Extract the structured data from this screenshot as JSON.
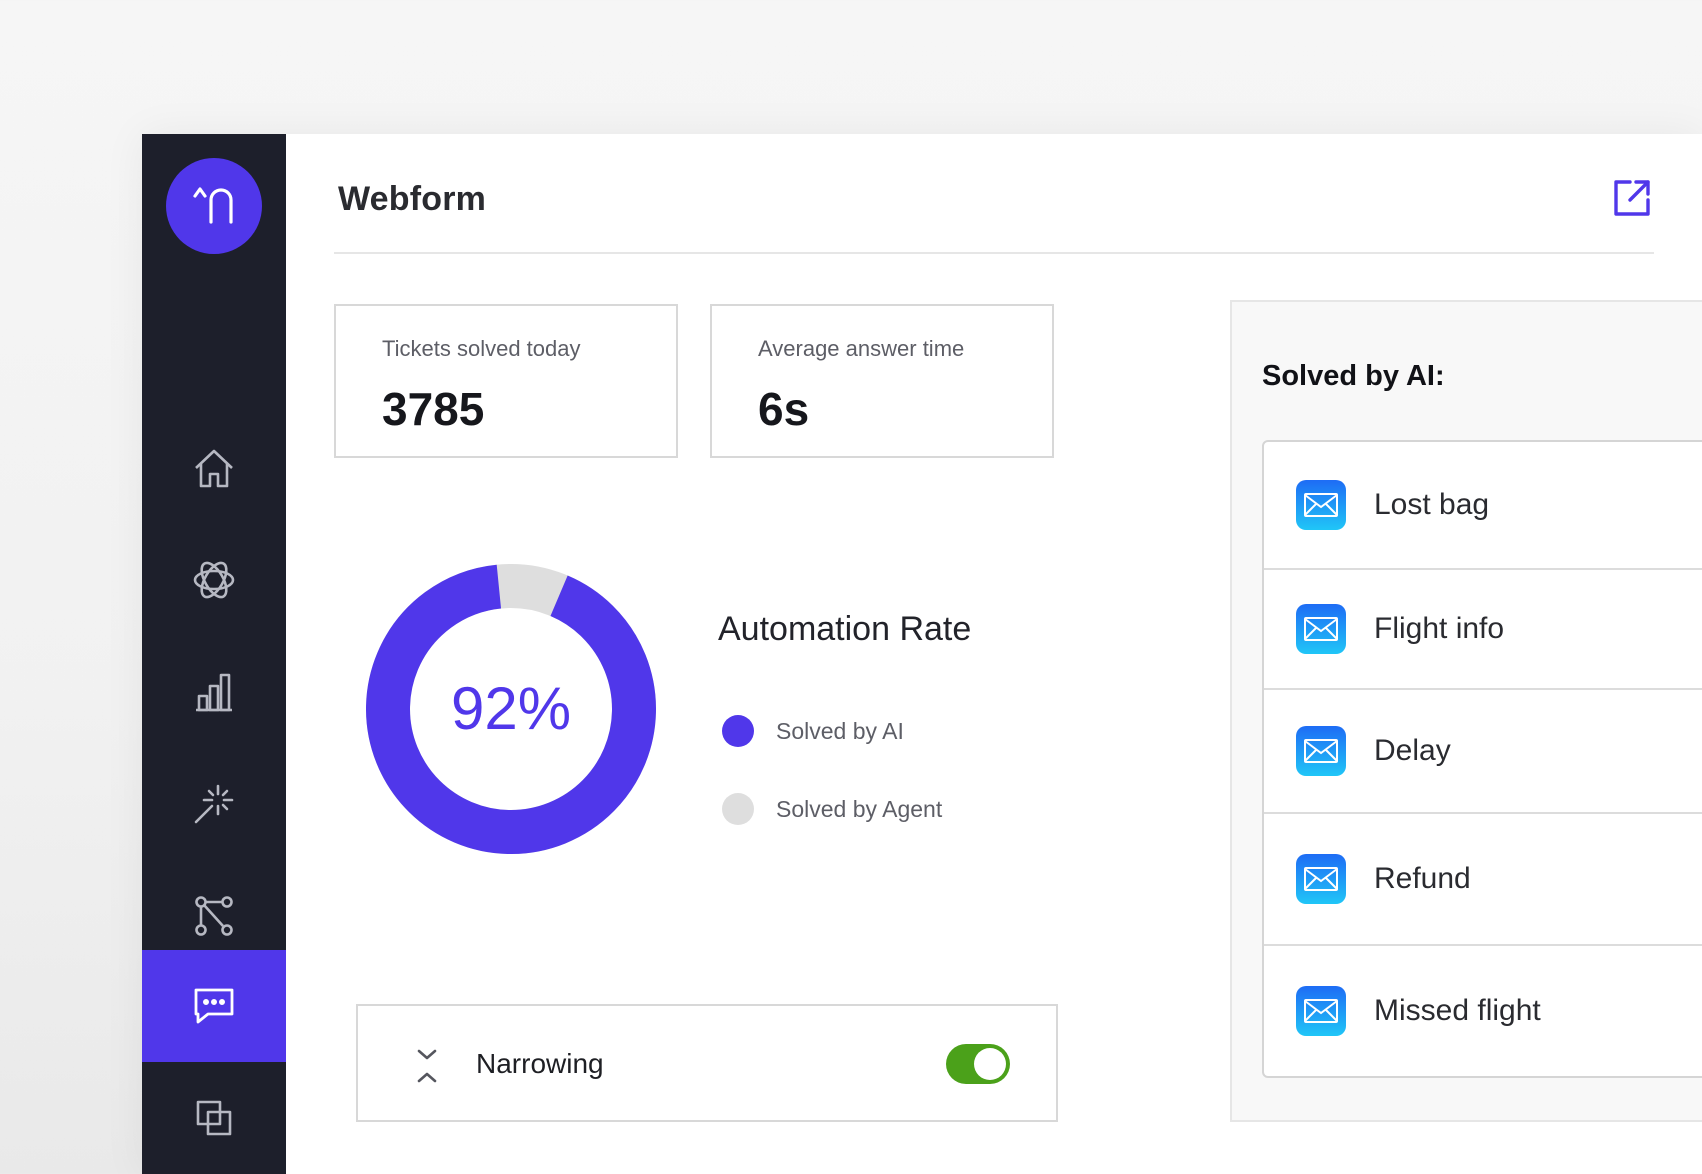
{
  "app": {
    "logo_icon": "underline-logo-icon"
  },
  "colors": {
    "brand": "#5037ea",
    "sidebar": "#1d1f2b",
    "agent": "#dedede",
    "toggle_on": "#4ba11a",
    "mail_gradient": [
      "#1e6cf5",
      "#20c6f7"
    ]
  },
  "sidebar": {
    "items": [
      {
        "name": "home",
        "icon": "home-icon",
        "active": false
      },
      {
        "name": "ai",
        "icon": "atom-icon",
        "active": false
      },
      {
        "name": "analytics",
        "icon": "bar-chart-icon",
        "active": false
      },
      {
        "name": "automation",
        "icon": "magic-wand-icon",
        "active": false
      },
      {
        "name": "flows",
        "icon": "flow-nodes-icon",
        "active": false
      },
      {
        "name": "settings",
        "icon": "gear-icon",
        "active": false
      },
      {
        "name": "webform",
        "icon": "chat-bubble-icon",
        "active": true
      },
      {
        "name": "integrations",
        "icon": "layers-icon",
        "active": false
      }
    ]
  },
  "header": {
    "title": "Webform",
    "open_icon": "open-external-icon"
  },
  "stats": [
    {
      "label": "Tickets solved today",
      "value": "3785"
    },
    {
      "label": "Average answer time",
      "value": "6s"
    }
  ],
  "automation": {
    "title": "Automation Rate",
    "percent_label": "92%",
    "ai_share": 0.92,
    "legend": [
      {
        "label": "Solved by AI",
        "color": "#5037ea"
      },
      {
        "label": "Solved by Agent",
        "color": "#dedede"
      }
    ]
  },
  "narrowing": {
    "label": "Narrowing",
    "icon": "collapse-vertical-icon",
    "enabled": true
  },
  "solved_by_ai": {
    "title": "Solved by AI:",
    "items": [
      {
        "label": "Lost bag",
        "icon": "mail-icon"
      },
      {
        "label": "Flight info",
        "icon": "mail-icon"
      },
      {
        "label": "Delay",
        "icon": "mail-icon"
      },
      {
        "label": "Refund",
        "icon": "mail-icon"
      },
      {
        "label": "Missed flight",
        "icon": "mail-icon"
      }
    ]
  }
}
